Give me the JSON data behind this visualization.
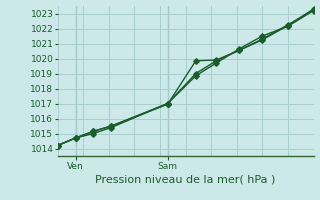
{
  "xlabel": "Pression niveau de la mer( hPa )",
  "bg_color": "#cce8e8",
  "grid_color": "#aacece",
  "line_color": "#1a5c2a",
  "spine_color": "#336633",
  "ylim": [
    1013.5,
    1023.5
  ],
  "yticks": [
    1014,
    1015,
    1016,
    1017,
    1018,
    1019,
    1020,
    1021,
    1022,
    1023
  ],
  "xlim": [
    0,
    1
  ],
  "xticks_pos": [
    0.07,
    0.43
  ],
  "xticks_labels": [
    "Ven",
    "Sam"
  ],
  "line1_x": [
    0.0,
    0.07,
    0.14,
    0.21,
    0.43,
    0.54,
    0.62,
    0.71,
    0.8,
    0.9,
    1.0
  ],
  "line1_y": [
    1014.2,
    1014.7,
    1015.0,
    1015.4,
    1017.0,
    1018.85,
    1019.7,
    1020.65,
    1021.5,
    1022.15,
    1023.2
  ],
  "line2_x": [
    0.0,
    0.07,
    0.14,
    0.21,
    0.43,
    0.54,
    0.62,
    0.71,
    0.8,
    0.9,
    1.0
  ],
  "line2_y": [
    1014.2,
    1014.7,
    1015.15,
    1015.5,
    1016.95,
    1019.85,
    1019.9,
    1020.55,
    1021.25,
    1022.2,
    1023.3
  ],
  "line3_x": [
    0.0,
    0.07,
    0.14,
    0.21,
    0.43,
    0.54,
    0.62,
    0.71,
    0.8,
    0.9,
    1.0
  ],
  "line3_y": [
    1014.2,
    1014.7,
    1015.15,
    1015.5,
    1017.0,
    1019.0,
    1019.85,
    1020.55,
    1021.3,
    1022.25,
    1023.25
  ],
  "ytick_fontsize": 6.5,
  "xtick_fontsize": 6.5,
  "xlabel_fontsize": 8.0,
  "linewidth": 1.0,
  "markersize": 2.8
}
